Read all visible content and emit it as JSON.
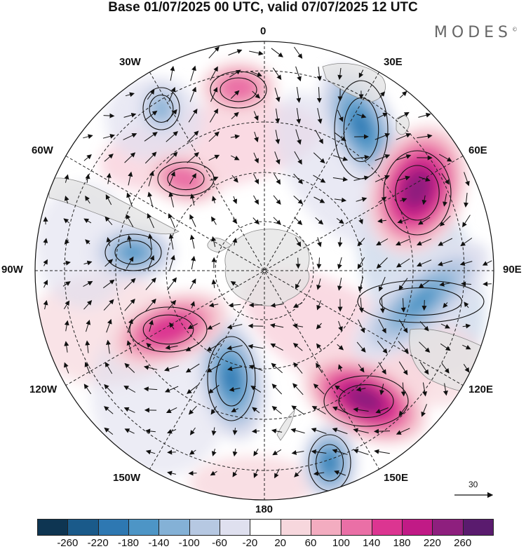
{
  "title": "Base 01/07/2025 00 UTC, valid 07/07/2025 12 UTC",
  "brand": "MODES",
  "brand_mark": "©",
  "map": {
    "projection": "south-polar-stereographic",
    "longitude_labels": {
      "top": "0",
      "top_right": "30E",
      "right_upper": "60E",
      "right": "90E",
      "right_lower": "120E",
      "bottom_right": "150E",
      "bottom": "180",
      "bottom_left": "150W",
      "left_lower": "120W",
      "left": "90W",
      "left_upper": "60W",
      "top_left": "30W"
    },
    "reference_vector": "30",
    "anomalies": [
      {
        "region": "south-atlantic-northeast",
        "sign": "negative",
        "peak": -180
      },
      {
        "region": "indian-ocean-west",
        "sign": "positive",
        "peak": 260
      },
      {
        "region": "indian-ocean-east",
        "sign": "negative",
        "peak": -140
      },
      {
        "region": "tasman-south",
        "sign": "positive",
        "peak": 260
      },
      {
        "region": "ross-sea-north",
        "sign": "negative",
        "peak": -180
      },
      {
        "region": "pacific-south-central",
        "sign": "negative",
        "peak": -180
      },
      {
        "region": "pacific-southeast",
        "sign": "positive",
        "peak": 180
      },
      {
        "region": "amundsen-north",
        "sign": "negative",
        "peak": -140
      },
      {
        "region": "drake-passage-west",
        "sign": "positive",
        "peak": 140
      },
      {
        "region": "south-atlantic-west",
        "sign": "positive",
        "peak": 140
      },
      {
        "region": "weddell-north",
        "sign": "negative",
        "peak": -100
      }
    ]
  },
  "colorbar": {
    "colors": [
      "#0e3552",
      "#1a5a8a",
      "#2e78b2",
      "#4d95c6",
      "#84b1d6",
      "#b6c8e2",
      "#dfe0ef",
      "#ffffff",
      "#f7d7dd",
      "#f3acc0",
      "#ea6fa6",
      "#dc3591",
      "#c11a86",
      "#8e1f7e",
      "#5a1b6e"
    ],
    "ticks": [
      "-260",
      "-220",
      "-180",
      "-140",
      "-100",
      "-60",
      "-20",
      "20",
      "60",
      "100",
      "140",
      "180",
      "220",
      "260"
    ]
  }
}
